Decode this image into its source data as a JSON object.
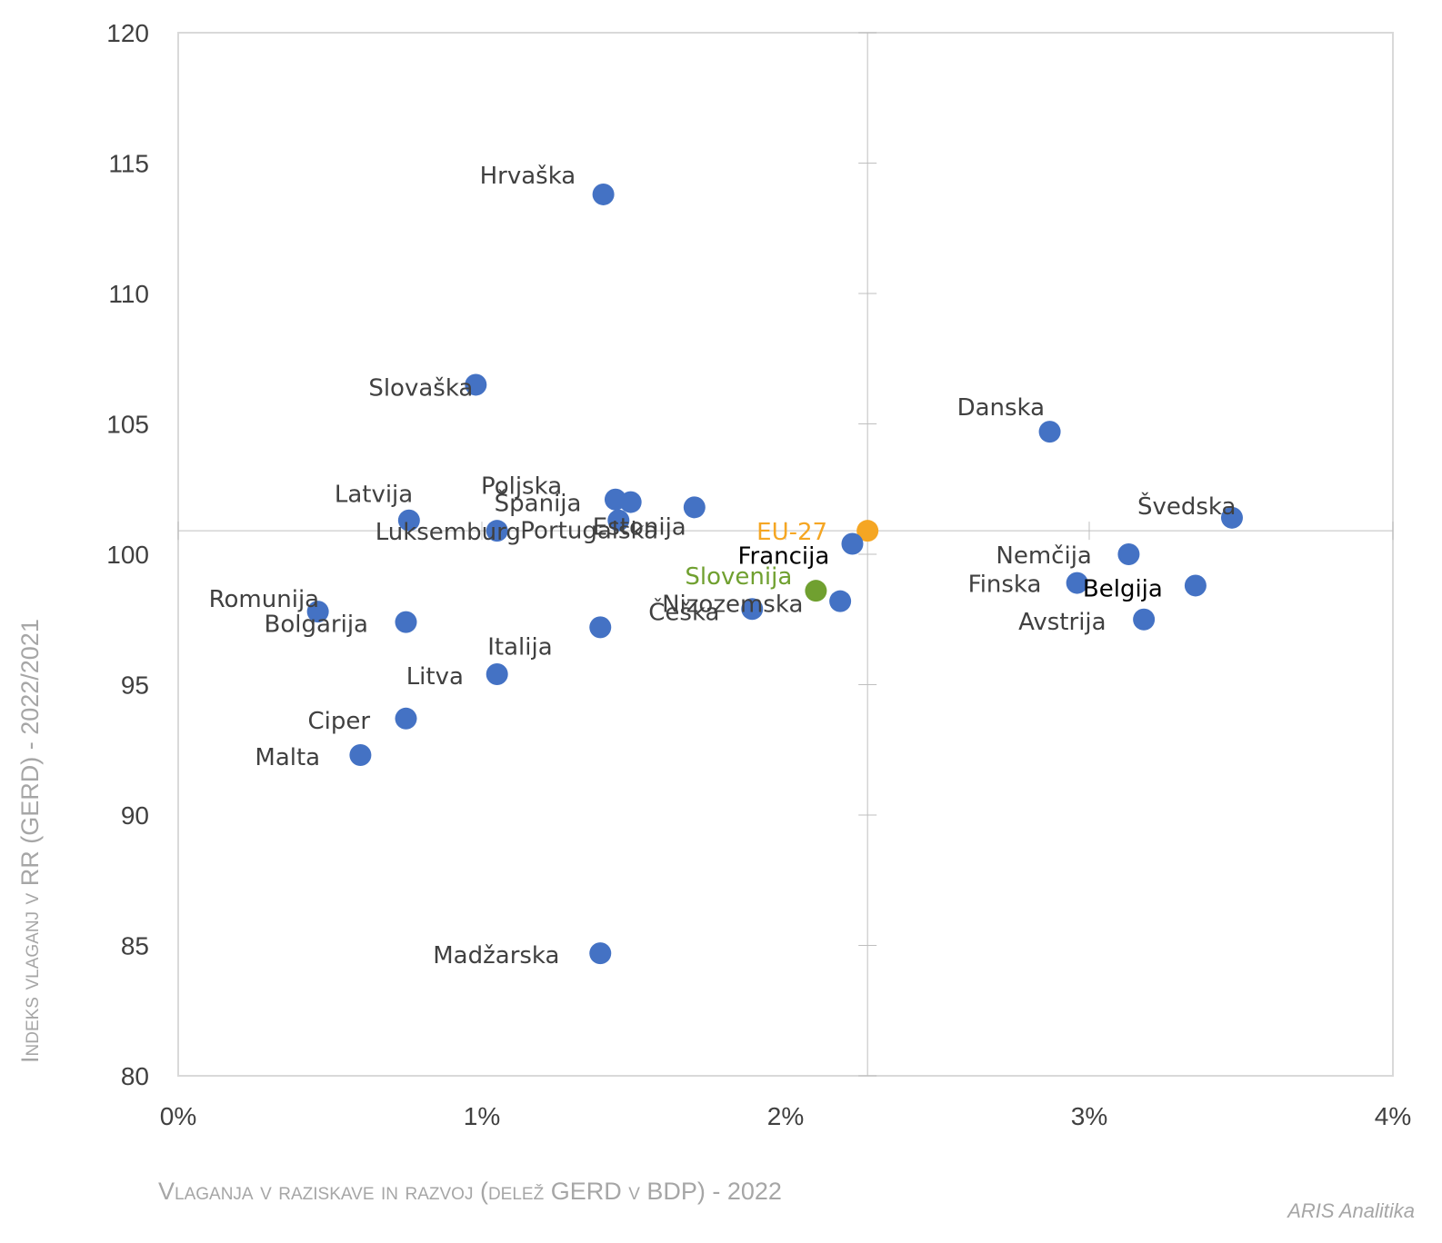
{
  "chart_data": {
    "type": "scatter",
    "xlabel": "Vlaganja v raziskave in razvoj (delež GERD v BDP) - 2022",
    "ylabel": "Indeks vlaganj v RR (GERD) - 2022/2021",
    "xlim": [
      0,
      4
    ],
    "ylim": [
      80,
      120
    ],
    "x_ticks": [
      "0%",
      "1%",
      "2%",
      "3%",
      "4%"
    ],
    "y_ticks": [
      "80",
      "85",
      "90",
      "95",
      "100",
      "105",
      "110",
      "115",
      "120"
    ],
    "reference_lines": {
      "x": 2.27,
      "y": 100.9
    },
    "colors": {
      "default": "#4472C4",
      "eu27": "#F5A623",
      "slovenia": "#70A030",
      "label": "#404040"
    },
    "points": [
      {
        "name": "Hrvaška",
        "x": 1.4,
        "y": 113.8,
        "color": "#4472C4"
      },
      {
        "name": "Slovaška",
        "x": 0.98,
        "y": 106.5,
        "color": "#4472C4"
      },
      {
        "name": "Danska",
        "x": 2.87,
        "y": 104.7,
        "color": "#4472C4"
      },
      {
        "name": "Poljska",
        "x": 1.44,
        "y": 102.1,
        "color": "#4472C4"
      },
      {
        "name": "Španija",
        "x": 1.49,
        "y": 102.0,
        "color": "#4472C4"
      },
      {
        "name": "Portugalska",
        "x": 1.45,
        "y": 101.3,
        "color": "#4472C4"
      },
      {
        "name": "Latvija",
        "x": 0.76,
        "y": 101.3,
        "color": "#4472C4"
      },
      {
        "name": "Luksemburg",
        "x": 1.05,
        "y": 100.9,
        "color": "#4472C4"
      },
      {
        "name": "Estonija",
        "x": 1.7,
        "y": 101.8,
        "color": "#4472C4"
      },
      {
        "name": "Švedska",
        "x": 3.47,
        "y": 101.4,
        "color": "#4472C4"
      },
      {
        "name": "EU-27",
        "x": 2.27,
        "y": 100.9,
        "color": "#F5A623"
      },
      {
        "name": "Francija",
        "x": 2.22,
        "y": 100.4,
        "color": "#4472C4"
      },
      {
        "name": "Nemčija",
        "x": 3.13,
        "y": 100.0,
        "color": "#4472C4"
      },
      {
        "name": "Finska",
        "x": 2.96,
        "y": 98.9,
        "color": "#4472C4"
      },
      {
        "name": "Belgija",
        "x": 3.35,
        "y": 98.8,
        "color": "#4472C4"
      },
      {
        "name": "Slovenija",
        "x": 2.1,
        "y": 98.6,
        "color": "#70A030"
      },
      {
        "name": "Nizozemska",
        "x": 2.18,
        "y": 98.2,
        "color": "#4472C4"
      },
      {
        "name": "Češka",
        "x": 1.89,
        "y": 97.9,
        "color": "#4472C4"
      },
      {
        "name": "Romunija",
        "x": 0.46,
        "y": 97.8,
        "color": "#4472C4"
      },
      {
        "name": "Bolgarija",
        "x": 0.75,
        "y": 97.4,
        "color": "#4472C4"
      },
      {
        "name": "Avstrija",
        "x": 3.18,
        "y": 97.5,
        "color": "#4472C4"
      },
      {
        "name": "Italija",
        "x": 1.39,
        "y": 97.2,
        "color": "#4472C4"
      },
      {
        "name": "Litva",
        "x": 1.05,
        "y": 95.4,
        "color": "#4472C4"
      },
      {
        "name": "Ciper",
        "x": 0.75,
        "y": 93.7,
        "color": "#4472C4"
      },
      {
        "name": "Malta",
        "x": 0.6,
        "y": 92.3,
        "color": "#4472C4"
      },
      {
        "name": "Madžarska",
        "x": 1.39,
        "y": 84.7,
        "color": "#4472C4"
      }
    ]
  },
  "credit": "ARIS Analitika"
}
